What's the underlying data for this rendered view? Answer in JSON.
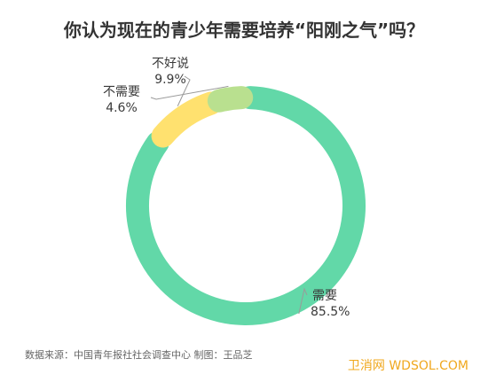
{
  "chart_data": {
    "type": "pie",
    "style": "donut",
    "title": "你认为现在的青少年需要培养“阳刚之气”吗？",
    "slices": [
      {
        "category": "需要",
        "value": 85.5,
        "label": "85.5%",
        "color": "#62d8a8"
      },
      {
        "category": "不好说",
        "value": 9.9,
        "label": "9.9%",
        "color": "#ffe16f"
      },
      {
        "category": "不需要",
        "value": 4.6,
        "label": "4.6%",
        "color": "#b9e08f"
      }
    ]
  },
  "footer": {
    "source": "数据来源：中国青年报社社会调查中心 制图：王品芝",
    "watermark": "卫消网 WDSOL.COM"
  }
}
